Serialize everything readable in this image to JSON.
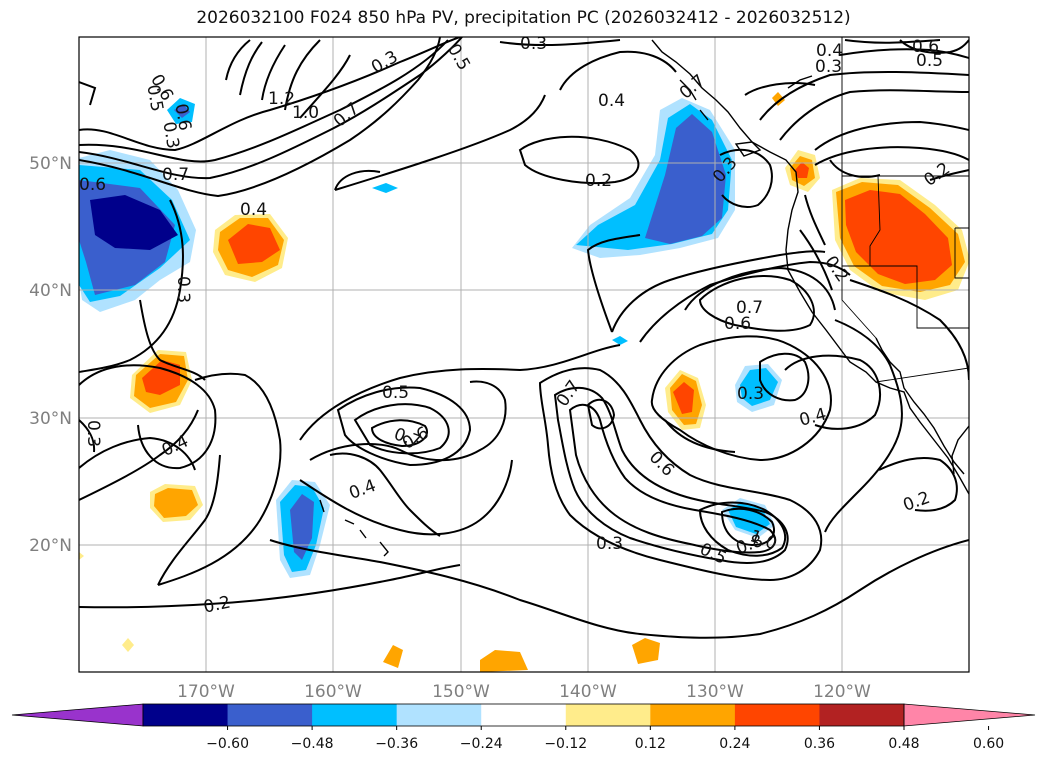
{
  "title": "2026032100 F024 850 hPa PV, precipitation PC (2026032412 - 2026032512)",
  "lon_labels": [
    "170°W",
    "160°W",
    "150°W",
    "140°W",
    "130°W",
    "120°W"
  ],
  "lat_labels": [
    "50°N",
    "40°N",
    "30°N",
    "20°N"
  ],
  "contour_labels": [
    "0.3",
    "0.5",
    "0.4",
    "0.5",
    "0.6",
    "0.3",
    "1.0",
    "0.7",
    "1.2",
    "0.4",
    "0.2",
    "0.3",
    "0.6",
    "0.7",
    "0.4",
    "0.3",
    "0.7",
    "0.6",
    "0.2",
    "0.5",
    "0.7",
    "0.6",
    "0.4",
    "0.3",
    "0.4",
    "0.3",
    "0.4",
    "0.6",
    "0.3",
    "0.5",
    "0.8",
    "1.0",
    "0.2",
    "0.2",
    "0.6",
    "0.3",
    "0.7",
    "0.2",
    "0.5",
    "0.3",
    "0.6",
    "0.7"
  ],
  "colorbar": {
    "ticks": [
      "−0.60",
      "−0.48",
      "−0.36",
      "−0.24",
      "−0.12",
      "0.12",
      "0.24",
      "0.36",
      "0.48",
      "0.60"
    ],
    "colors": [
      "#9933cc",
      "#00008b",
      "#3a5fcd",
      "#00bfff",
      "#b0e2ff",
      "#ffffff",
      "#ffec8b",
      "#ffa500",
      "#ff4500",
      "#b22222",
      "#ff85a8"
    ]
  }
}
